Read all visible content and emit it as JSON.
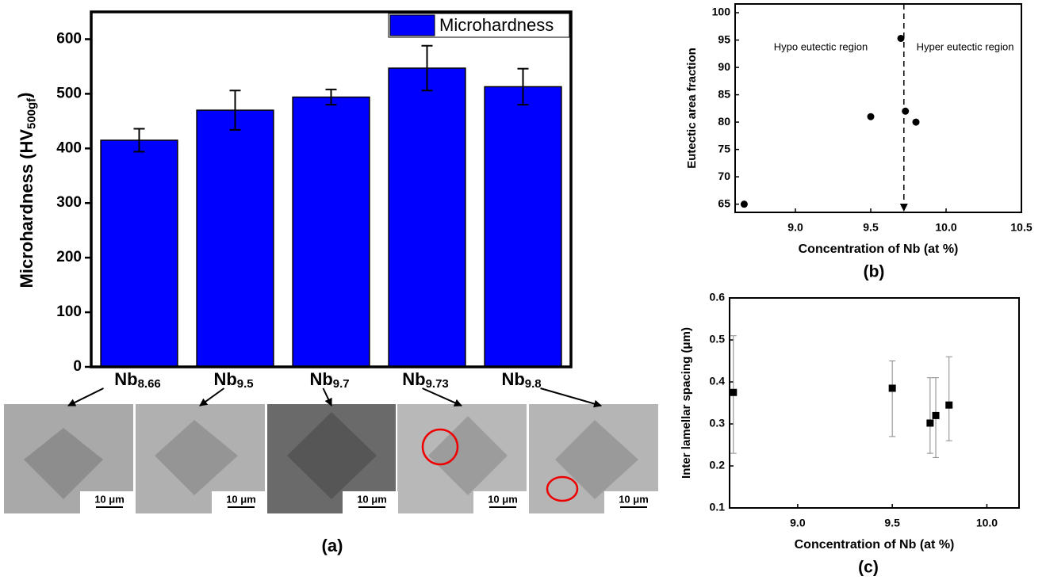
{
  "chart_data": [
    {
      "type": "bar",
      "ylabel": "Microhardness (HV500gf)",
      "panel_label": "(a)",
      "categories": [
        "Nb8.66",
        "Nb9.5",
        "Nb9.7",
        "Nb9.73",
        "Nb9.8"
      ],
      "series": [
        {
          "name": "Microhardness",
          "color": "#0000ff",
          "values": [
            415,
            470,
            494,
            547,
            513
          ],
          "errors": [
            21,
            36,
            14,
            41,
            33
          ]
        }
      ],
      "ylim": [
        0,
        650
      ],
      "yticks": [
        0,
        100,
        200,
        300,
        400,
        500,
        600
      ],
      "legend": "upper right",
      "scale_bar_labels": [
        "10 μm",
        "10 μm",
        "10 μm",
        "10 μm",
        "10 μm"
      ]
    },
    {
      "type": "scatter",
      "xlabel": "Concentration of Nb (at %)",
      "ylabel": "Eutectic area fraction",
      "panel_label": "(b)",
      "x": [
        8.66,
        9.5,
        9.7,
        9.73,
        9.8
      ],
      "values": [
        65,
        81,
        95.3,
        82,
        80
      ],
      "color": "#000000",
      "marker": "circle",
      "xlim": [
        8.6,
        10.5
      ],
      "xticks": [
        {
          "value": 9.0,
          "label": "9.0"
        },
        9.5,
        {
          "value": 10.0,
          "label": "10.0"
        },
        10.5
      ],
      "ylim": [
        63.5,
        101.6
      ],
      "yticks": [
        65,
        70,
        75,
        80,
        85,
        90,
        95,
        100
      ],
      "vline": 9.72,
      "annotations": [
        "Hypo eutectic region",
        "Hyper eutectic region"
      ]
    },
    {
      "type": "scatter",
      "xlabel": "Concentration of Nb (at %)",
      "ylabel": "Inter lamellar spacing (μm)",
      "panel_label": "(c)",
      "x": [
        8.66,
        9.5,
        9.7,
        9.73,
        9.8
      ],
      "values": [
        0.375,
        0.385,
        0.302,
        0.32,
        0.345
      ],
      "color": "#000000",
      "marker": "square",
      "yerr_low": [
        0.145,
        0.115,
        0.072,
        0.1,
        0.085
      ],
      "yerr_high": [
        0.135,
        0.065,
        0.108,
        0.09,
        0.115
      ],
      "xlim": [
        8.64,
        10.17
      ],
      "xticks": [
        {
          "value": 9.0,
          "label": "9.0"
        },
        9.5,
        {
          "value": 10.0,
          "label": "10.0"
        }
      ],
      "ylim": [
        0.1,
        0.6
      ],
      "yticks": [
        0.1,
        0.2,
        0.3,
        0.4,
        0.5,
        0.6
      ]
    }
  ]
}
